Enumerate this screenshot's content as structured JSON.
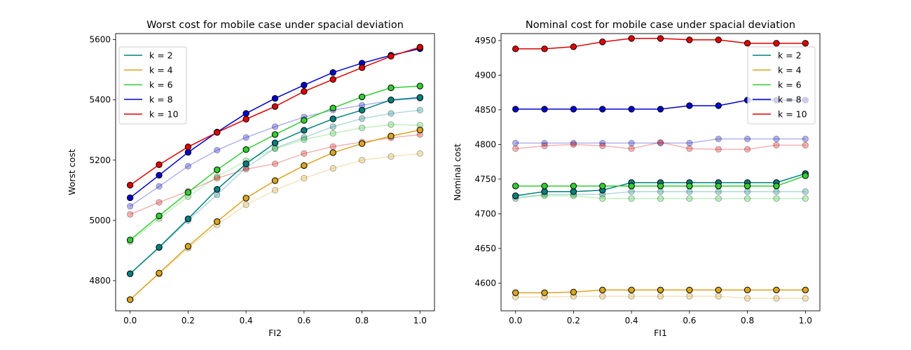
{
  "chart_data": [
    {
      "type": "line",
      "title": "Worst cost for mobile case under spacial deviation",
      "xlabel": "FI2",
      "ylabel": "Worst cost",
      "xlim": [
        -0.05,
        1.05
      ],
      "ylim": [
        4700,
        5620
      ],
      "xticks": [
        0.0,
        0.2,
        0.4,
        0.6,
        0.8,
        1.0
      ],
      "xtick_labels": [
        "0.0",
        "0.2",
        "0.4",
        "0.6",
        "0.8",
        "1.0"
      ],
      "yticks": [
        4800,
        5000,
        5200,
        5400,
        5600
      ],
      "ytick_labels": [
        "4800",
        "5000",
        "5200",
        "5400",
        "5600"
      ],
      "legend_position": "upper-left",
      "x": [
        0.0,
        0.1,
        0.2,
        0.3,
        0.4,
        0.5,
        0.6,
        0.7,
        0.8,
        0.9,
        1.0
      ],
      "series": [
        {
          "name": "k = 2",
          "color": "#008080",
          "values": [
            4823,
            4911,
            5005,
            5103,
            5188,
            5257,
            5299,
            5337,
            5366,
            5400,
            5408
          ]
        },
        {
          "name": "k = 4",
          "color": "#DAA520",
          "values": [
            4737,
            4825,
            4914,
            4996,
            5074,
            5132,
            5182,
            5225,
            5255,
            5280,
            5300
          ]
        },
        {
          "name": "k = 6",
          "color": "#32CD32",
          "values": [
            4935,
            5015,
            5093,
            5168,
            5235,
            5285,
            5332,
            5373,
            5410,
            5440,
            5446
          ]
        },
        {
          "name": "k = 8",
          "color": "#0000CD",
          "values": [
            5075,
            5150,
            5226,
            5293,
            5355,
            5405,
            5449,
            5491,
            5522,
            5548,
            5570
          ]
        },
        {
          "name": "k = 10",
          "color": "#E00000",
          "values": [
            5117,
            5185,
            5244,
            5292,
            5336,
            5378,
            5428,
            5468,
            5507,
            5545,
            5575
          ]
        }
      ],
      "faded_series": [
        {
          "color": "#008080",
          "values": [
            4823,
            4909,
            5000,
            5085,
            5175,
            5240,
            5275,
            5311,
            5338,
            5355,
            5366
          ]
        },
        {
          "color": "#DAA520",
          "values": [
            4737,
            4822,
            4908,
            4985,
            5052,
            5100,
            5140,
            5173,
            5200,
            5212,
            5222
          ]
        },
        {
          "color": "#32CD32",
          "values": [
            4930,
            5006,
            5079,
            5145,
            5198,
            5238,
            5268,
            5289,
            5307,
            5318,
            5316
          ]
        },
        {
          "color": "#0000CD",
          "values": [
            5047,
            5113,
            5180,
            5233,
            5275,
            5311,
            5343,
            5366,
            5382,
            5398,
            5405
          ]
        },
        {
          "color": "#E00000",
          "values": [
            5020,
            5060,
            5097,
            5140,
            5170,
            5188,
            5222,
            5245,
            5260,
            5274,
            5285
          ]
        }
      ]
    },
    {
      "type": "line",
      "title": "Nominal cost for mobile case under spacial deviation",
      "xlabel": "FI1",
      "ylabel": "Nominal cost",
      "xlim": [
        -0.05,
        1.05
      ],
      "ylim": [
        4560,
        4960
      ],
      "xticks": [
        0.0,
        0.2,
        0.4,
        0.6,
        0.8,
        1.0
      ],
      "xtick_labels": [
        "0.0",
        "0.2",
        "0.4",
        "0.6",
        "0.8",
        "1.0"
      ],
      "yticks": [
        4600,
        4650,
        4700,
        4750,
        4800,
        4850,
        4900,
        4950
      ],
      "ytick_labels": [
        "4600",
        "4650",
        "4700",
        "4750",
        "4800",
        "4850",
        "4900",
        "4950"
      ],
      "legend_position": "upper-right",
      "x": [
        0.0,
        0.1,
        0.2,
        0.3,
        0.4,
        0.5,
        0.6,
        0.7,
        0.8,
        0.9,
        1.0
      ],
      "series": [
        {
          "name": "k = 2",
          "color": "#008080",
          "values": [
            4726,
            4732,
            4732,
            4734,
            4745,
            4745,
            4745,
            4745,
            4745,
            4745,
            4758
          ]
        },
        {
          "name": "k = 4",
          "color": "#DAA520",
          "values": [
            4586,
            4586,
            4587,
            4590,
            4590,
            4590,
            4590,
            4590,
            4590,
            4590,
            4590
          ]
        },
        {
          "name": "k = 6",
          "color": "#32CD32",
          "values": [
            4740,
            4740,
            4740,
            4740,
            4740,
            4740,
            4740,
            4740,
            4740,
            4740,
            4755
          ]
        },
        {
          "name": "k = 8",
          "color": "#0000CD",
          "values": [
            4851,
            4851,
            4851,
            4851,
            4851,
            4851,
            4856,
            4856,
            4864,
            4864,
            4864
          ]
        },
        {
          "name": "k = 10",
          "color": "#E00000",
          "values": [
            4938,
            4938,
            4941,
            4948,
            4953,
            4953,
            4951,
            4951,
            4946,
            4946,
            4946
          ]
        }
      ],
      "faded_series": [
        {
          "color": "#008080",
          "values": [
            4722,
            4728,
            4728,
            4728,
            4732,
            4732,
            4732,
            4732,
            4732,
            4732,
            4732
          ]
        },
        {
          "color": "#DAA520",
          "values": [
            4580,
            4580,
            4581,
            4581,
            4581,
            4581,
            4581,
            4581,
            4578,
            4578,
            4578
          ]
        },
        {
          "color": "#32CD32",
          "values": [
            4725,
            4726,
            4726,
            4722,
            4722,
            4722,
            4722,
            4722,
            4722,
            4722,
            4722
          ]
        },
        {
          "color": "#0000CD",
          "values": [
            4802,
            4802,
            4802,
            4802,
            4802,
            4802,
            4802,
            4808,
            4808,
            4808,
            4808
          ]
        },
        {
          "color": "#E00000",
          "values": [
            4794,
            4798,
            4800,
            4798,
            4794,
            4803,
            4794,
            4793,
            4793,
            4799,
            4799
          ]
        }
      ]
    }
  ]
}
